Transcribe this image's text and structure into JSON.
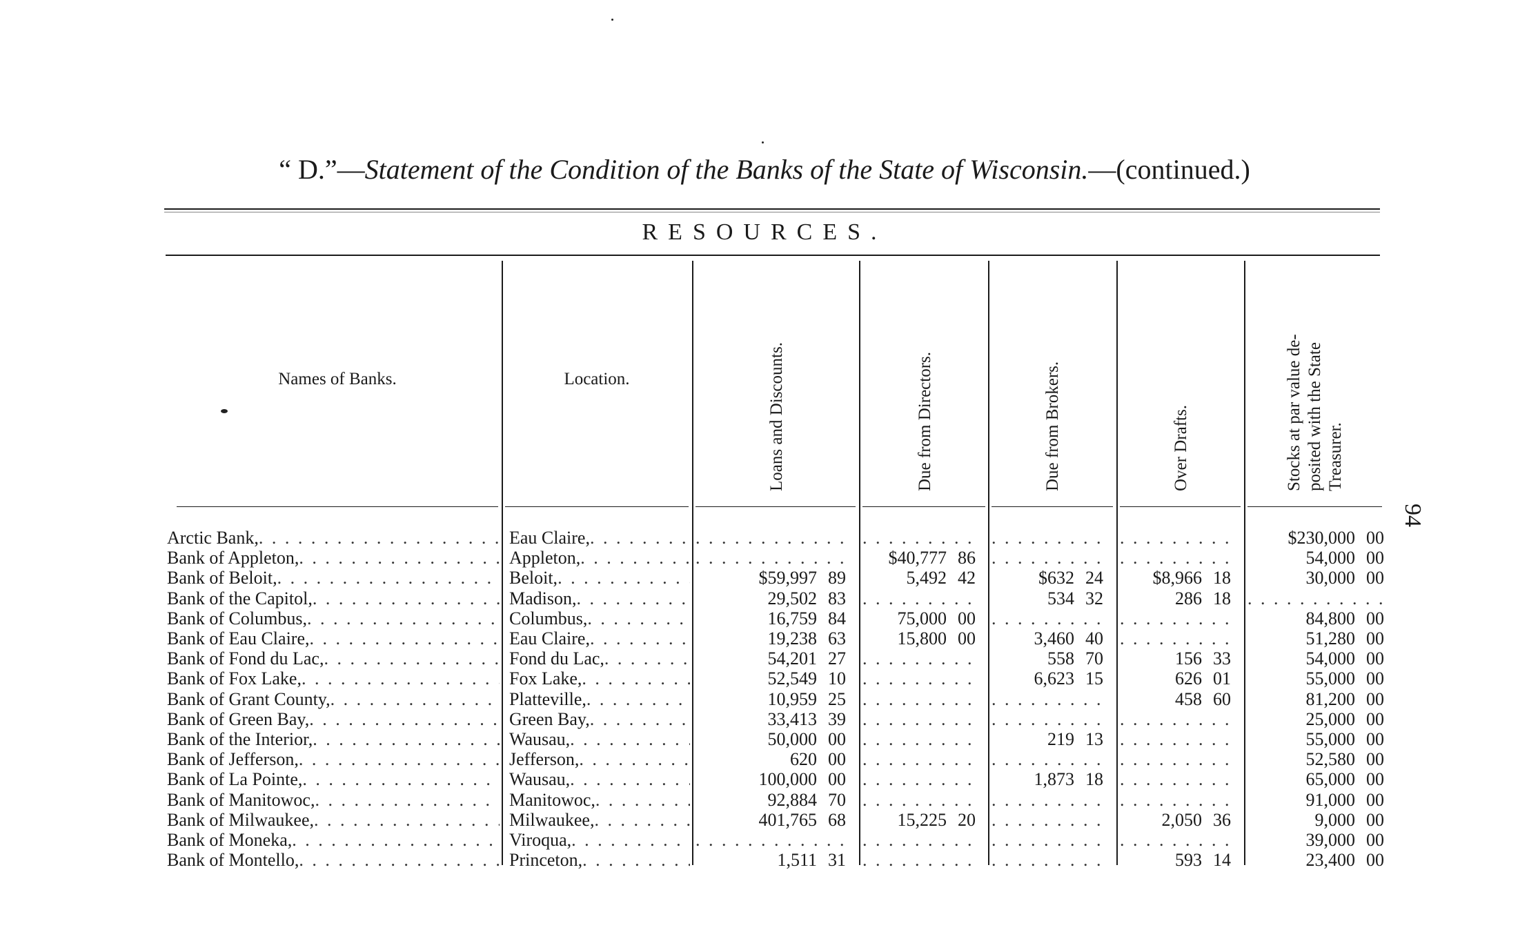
{
  "title": {
    "prefix": "“ D.”—",
    "italic": "Statement of the Condition of the Banks of the State of Wisconsin.",
    "suffix": "—(continued.)"
  },
  "section": "RESOURCES.",
  "page_number": "94",
  "columns": {
    "name": "Names of Banks.",
    "location": "Location.",
    "loans": "Loans and Discounts.",
    "directors": "Due from Directors.",
    "brokers": "Due from Brokers.",
    "overdrafts": "Over Drafts.",
    "stocks_line1": "Stocks at par value de-",
    "stocks_line2": "posited with the State",
    "stocks_line3": "Treasurer."
  },
  "rows": [
    {
      "name": "Arctic Bank,",
      "location": "Eau Claire,",
      "loans": [
        "",
        ""
      ],
      "directors": [
        "",
        ""
      ],
      "brokers": [
        "",
        ""
      ],
      "overdrafts": [
        "",
        ""
      ],
      "stocks": [
        "$230,000",
        "00"
      ]
    },
    {
      "name": "Bank of Appleton,",
      "location": "Appleton,",
      "loans": [
        "",
        ""
      ],
      "directors": [
        "$40,777",
        "86"
      ],
      "brokers": [
        "",
        ""
      ],
      "overdrafts": [
        "",
        ""
      ],
      "stocks": [
        "54,000",
        "00"
      ]
    },
    {
      "name": "Bank of Beloit,",
      "location": "Beloit,",
      "loans": [
        "$59,997",
        "89"
      ],
      "directors": [
        "5,492",
        "42"
      ],
      "brokers": [
        "$632",
        "24"
      ],
      "overdrafts": [
        "$8,966",
        "18"
      ],
      "stocks": [
        "30,000",
        "00"
      ]
    },
    {
      "name": "Bank of the Capitol,",
      "location": "Madison,",
      "loans": [
        "29,502",
        "83"
      ],
      "directors": [
        "",
        ""
      ],
      "brokers": [
        "534",
        "32"
      ],
      "overdrafts": [
        "286",
        "18"
      ],
      "stocks": [
        "",
        ""
      ]
    },
    {
      "name": "Bank of Columbus,",
      "location": "Columbus,",
      "loans": [
        "16,759",
        "84"
      ],
      "directors": [
        "75,000",
        "00"
      ],
      "brokers": [
        "",
        ""
      ],
      "overdrafts": [
        "",
        ""
      ],
      "stocks": [
        "84,800",
        "00"
      ]
    },
    {
      "name": "Bank of Eau Claire,",
      "location": "Eau Claire,",
      "loans": [
        "19,238",
        "63"
      ],
      "directors": [
        "15,800",
        "00"
      ],
      "brokers": [
        "3,460",
        "40"
      ],
      "overdrafts": [
        "",
        ""
      ],
      "stocks": [
        "51,280",
        "00"
      ]
    },
    {
      "name": "Bank of Fond du Lac,",
      "location": "Fond du Lac,",
      "loans": [
        "54,201",
        "27"
      ],
      "directors": [
        "",
        ""
      ],
      "brokers": [
        "558",
        "70"
      ],
      "overdrafts": [
        "156",
        "33"
      ],
      "stocks": [
        "54,000",
        "00"
      ]
    },
    {
      "name": "Bank of Fox Lake,",
      "location": "Fox Lake,",
      "loans": [
        "52,549",
        "10"
      ],
      "directors": [
        "",
        ""
      ],
      "brokers": [
        "6,623",
        "15"
      ],
      "overdrafts": [
        "626",
        "01"
      ],
      "stocks": [
        "55,000",
        "00"
      ]
    },
    {
      "name": "Bank of Grant County,",
      "location": "Platteville,",
      "loans": [
        "10,959",
        "25"
      ],
      "directors": [
        "",
        ""
      ],
      "brokers": [
        "",
        ""
      ],
      "overdrafts": [
        "458",
        "60"
      ],
      "stocks": [
        "81,200",
        "00"
      ]
    },
    {
      "name": "Bank of Green Bay,",
      "location": "Green Bay,",
      "loans": [
        "33,413",
        "39"
      ],
      "directors": [
        "",
        ""
      ],
      "brokers": [
        "",
        ""
      ],
      "overdrafts": [
        "",
        ""
      ],
      "stocks": [
        "25,000",
        "00"
      ]
    },
    {
      "name": "Bank of the Interior,",
      "location": "Wausau,",
      "loans": [
        "50,000",
        "00"
      ],
      "directors": [
        "",
        ""
      ],
      "brokers": [
        "219",
        "13"
      ],
      "overdrafts": [
        "",
        ""
      ],
      "stocks": [
        "55,000",
        "00"
      ]
    },
    {
      "name": "Bank of Jefferson,",
      "location": "Jefferson,",
      "loans": [
        "620",
        "00"
      ],
      "directors": [
        "",
        ""
      ],
      "brokers": [
        "",
        ""
      ],
      "overdrafts": [
        "",
        ""
      ],
      "stocks": [
        "52,580",
        "00"
      ]
    },
    {
      "name": "Bank of La Pointe,",
      "location": "Wausau,",
      "loans": [
        "100,000",
        "00"
      ],
      "directors": [
        "",
        ""
      ],
      "brokers": [
        "1,873",
        "18"
      ],
      "overdrafts": [
        "",
        ""
      ],
      "stocks": [
        "65,000",
        "00"
      ]
    },
    {
      "name": "Bank of Manitowoc,",
      "location": "Manitowoc,",
      "loans": [
        "92,884",
        "70"
      ],
      "directors": [
        "",
        ""
      ],
      "brokers": [
        "",
        ""
      ],
      "overdrafts": [
        "",
        ""
      ],
      "stocks": [
        "91,000",
        "00"
      ]
    },
    {
      "name": "Bank of Milwaukee,",
      "location": "Milwaukee,",
      "loans": [
        "401,765",
        "68"
      ],
      "directors": [
        "15,225",
        "20"
      ],
      "brokers": [
        "",
        ""
      ],
      "overdrafts": [
        "2,050",
        "36"
      ],
      "stocks": [
        "9,000",
        "00"
      ]
    },
    {
      "name": "Bank of Moneka,",
      "location": "Viroqua,",
      "loans": [
        "",
        ""
      ],
      "directors": [
        "",
        ""
      ],
      "brokers": [
        "",
        ""
      ],
      "overdrafts": [
        "",
        ""
      ],
      "stocks": [
        "39,000",
        "00"
      ]
    },
    {
      "name": "Bank of Montello,",
      "location": "Princeton,",
      "loans": [
        "1,511",
        "31"
      ],
      "directors": [
        "",
        ""
      ],
      "brokers": [
        "",
        ""
      ],
      "overdrafts": [
        "593",
        "14"
      ],
      "stocks": [
        "23,400",
        "00"
      ]
    }
  ]
}
